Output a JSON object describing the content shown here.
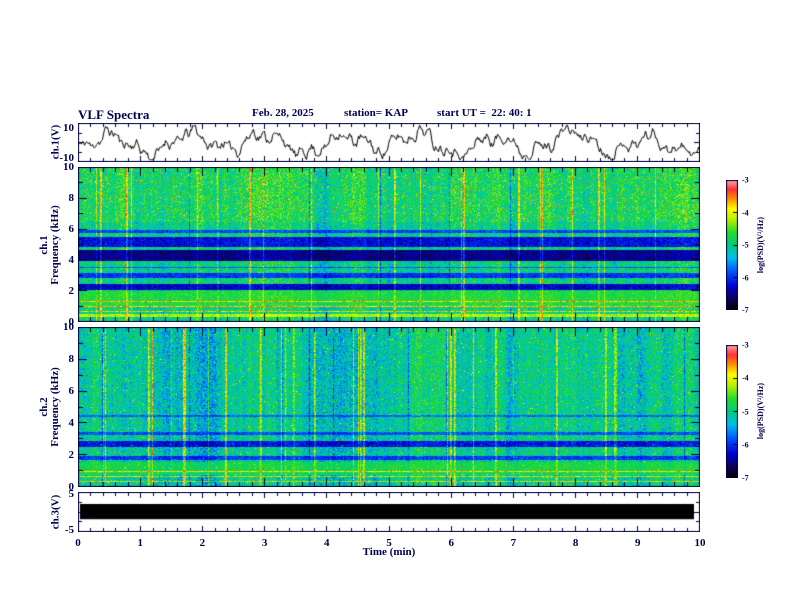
{
  "header": {
    "title": "VLF Spectra",
    "date": "Feb. 28, 2025",
    "station": "station= KAP",
    "start_ut": "start UT =  22: 40: 1"
  },
  "labels": {
    "ch1_wave": "ch.1(V)",
    "ch1_spec_line1": "ch.1",
    "ch1_spec_line2": "Frequency (kHz)",
    "ch2_spec_line1": "ch.2",
    "ch2_spec_line2": "Frequency (kHz)",
    "ch3_wave": "ch.3(V)",
    "colorbar": "log(PSD)(V²/Hz)"
  },
  "axes": {
    "time_label": "Time (min)",
    "time_ticks": [
      "0",
      "1",
      "2",
      "3",
      "4",
      "5",
      "6",
      "7",
      "8",
      "9",
      "10"
    ],
    "freq_ticks": [
      "10",
      "8",
      "6",
      "4",
      "2",
      "0"
    ],
    "wave1_ticks": [
      "10",
      "-10"
    ],
    "wave3_ticks": [
      "5",
      "-5"
    ]
  },
  "colorbar": {
    "ticks": [
      "-3",
      "-4",
      "-5",
      "-6",
      "-7"
    ],
    "zmin": -7,
    "zmax": -3
  },
  "colors": {
    "frame": "#000040",
    "text": "#000050",
    "waveform": "#000000",
    "background": "#ffffff",
    "colormap": [
      {
        "t": 0.0,
        "rgb": [
          0,
          0,
          0
        ]
      },
      {
        "t": 0.07,
        "rgb": [
          15,
          0,
          70
        ]
      },
      {
        "t": 0.18,
        "rgb": [
          0,
          0,
          210
        ]
      },
      {
        "t": 0.3,
        "rgb": [
          0,
          90,
          255
        ]
      },
      {
        "t": 0.4,
        "rgb": [
          0,
          190,
          230
        ]
      },
      {
        "t": 0.5,
        "rgb": [
          0,
          205,
          120
        ]
      },
      {
        "t": 0.6,
        "rgb": [
          40,
          220,
          40
        ]
      },
      {
        "t": 0.7,
        "rgb": [
          190,
          240,
          0
        ]
      },
      {
        "t": 0.78,
        "rgb": [
          255,
          255,
          0
        ]
      },
      {
        "t": 0.86,
        "rgb": [
          255,
          140,
          0
        ]
      },
      {
        "t": 0.93,
        "rgb": [
          255,
          50,
          50
        ]
      },
      {
        "t": 1.0,
        "rgb": [
          255,
          165,
          165
        ]
      }
    ]
  },
  "chart_data": [
    {
      "type": "line",
      "panel": "ch1_waveform",
      "title": "ch.1 voltage time series",
      "xlabel": "Time (min)",
      "ylabel": "ch.1(V)",
      "xlim": [
        0,
        10
      ],
      "ylim": [
        -10,
        10
      ],
      "description": "Dense noisy oscillating waveform spanning roughly -9 to +9 V over the full 10 minutes",
      "render": {
        "seed": 11,
        "carriers": [
          [
            5.1,
            4.5
          ],
          [
            13.7,
            2.2
          ],
          [
            2.3,
            1.5
          ],
          [
            40.0,
            1.2
          ]
        ],
        "noise": 2.2
      }
    },
    {
      "type": "heatmap",
      "panel": "ch1_spectrogram",
      "title": "ch.1 VLF spectrogram",
      "xlabel": "Time (min)",
      "ylabel": "Frequency (kHz)",
      "xlim": [
        0,
        10
      ],
      "ylim": [
        0,
        10
      ],
      "zlabel": "log(PSD)(V²/Hz)",
      "zlim": [
        -7,
        -3
      ],
      "description": "Mottled green/cyan broadband noise with bright yellow-red vertical streaks; dark blue horizontal bands near 4.0-4.7, 4.9-5.5, 2.1-2.5 and 2.9-3.2 kHz; orange/red harmonic lines below ~1.6 kHz; red line at 0 kHz",
      "render": {
        "seed": 21,
        "base_level": -5.0,
        "noise": 0.5,
        "streak_prob": 0.05,
        "speckle": {
          "fmin": 6.5,
          "boost": 0.15,
          "prob": 0.03,
          "amp": 1.2
        },
        "bands": [
          {
            "f": [
              4.0,
              4.7
            ],
            "level": -6.5
          },
          {
            "f": [
              4.9,
              5.5
            ],
            "level": -6.2
          },
          {
            "f": [
              5.8,
              6.0
            ],
            "level": -5.9
          },
          {
            "f": [
              2.1,
              2.5
            ],
            "level": -6.3
          },
          {
            "f": [
              2.9,
              3.2
            ],
            "level": -6.0
          },
          {
            "f": [
              3.5,
              3.6
            ],
            "level": -5.8
          },
          {
            "f": [
              1.0,
              2.0
            ],
            "level": -4.7
          },
          {
            "f": [
              0.35,
              0.55
            ],
            "level": -4.2
          },
          {
            "f": [
              0.0,
              0.12
            ],
            "level": -3.4
          }
        ]
      }
    },
    {
      "type": "heatmap",
      "panel": "ch2_spectrogram",
      "title": "ch.2 VLF spectrogram",
      "xlabel": "Time (min)",
      "ylabel": "Frequency (kHz)",
      "xlim": [
        0,
        10
      ],
      "ylim": [
        0,
        10
      ],
      "zlabel": "log(PSD)(V²/Hz)",
      "zlim": [
        -7,
        -3
      ],
      "description": "Green/cyan broadband noise with vertical streaks; dark bands near 2.55-2.9 and 1.7-1.95 kHz; strong orange/red horizontal lines below ~1.6 kHz; red line at 0 kHz",
      "render": {
        "seed": 37,
        "base_level": -5.15,
        "noise": 0.5,
        "streak_prob": 0.045,
        "speckle": {
          "fmin": 0.0,
          "boost": 0.0,
          "prob": 0.015,
          "amp": 1.0
        },
        "bands": [
          {
            "f": [
              2.55,
              2.9
            ],
            "level": -6.2
          },
          {
            "f": [
              1.7,
              1.95
            ],
            "level": -6.0
          },
          {
            "f": [
              3.3,
              3.5
            ],
            "level": -5.9
          },
          {
            "f": [
              4.4,
              4.55
            ],
            "level": -5.8
          },
          {
            "f": [
              0.8,
              1.6
            ],
            "level": -4.8
          },
          {
            "f": [
              0.0,
              0.12
            ],
            "level": -3.5
          }
        ]
      }
    },
    {
      "type": "line",
      "panel": "ch3_waveform",
      "title": "ch.3 voltage time series",
      "xlabel": "Time (min)",
      "ylabel": "ch.3(V)",
      "xlim": [
        0,
        10
      ],
      "ylim": [
        -5,
        5
      ],
      "description": "Signal saturated across full record; renders as one solid black horizontal bar around 0 V",
      "render": {
        "bar_ymin": -1.8,
        "bar_ymax": 2.0
      }
    }
  ]
}
